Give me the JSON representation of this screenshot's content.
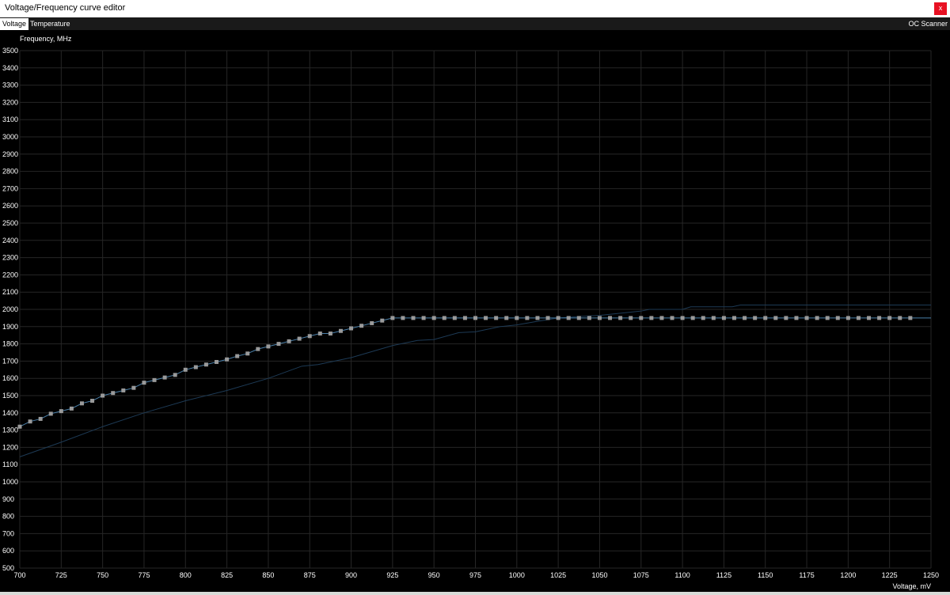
{
  "window": {
    "title": "Voltage/Frequency curve editor",
    "close_label": "x"
  },
  "tabs": [
    {
      "label": "Voltage",
      "active": true
    },
    {
      "label": "Temperature",
      "active": false
    }
  ],
  "oc_scanner_label": "OC Scanner",
  "colors": {
    "background": "#000000",
    "grid": "#262626",
    "curve": "#4a7fa8",
    "reference_curve": "#1d3a55",
    "marker": "#9a9a9a"
  },
  "chart_data": {
    "type": "line",
    "ylabel": "Frequency, MHz",
    "xlabel": "Voltage, mV",
    "xlim": [
      700,
      1250
    ],
    "ylim": [
      500,
      3500
    ],
    "grid": true,
    "x_ticks": [
      700,
      725,
      750,
      775,
      800,
      825,
      850,
      875,
      900,
      925,
      950,
      975,
      1000,
      1025,
      1050,
      1075,
      1100,
      1125,
      1150,
      1175,
      1200,
      1225,
      1250
    ],
    "y_ticks": [
      500,
      600,
      700,
      800,
      900,
      1000,
      1100,
      1200,
      1300,
      1400,
      1500,
      1600,
      1700,
      1800,
      1900,
      2000,
      2100,
      2200,
      2300,
      2400,
      2500,
      2600,
      2700,
      2800,
      2900,
      3000,
      3100,
      3200,
      3300,
      3400,
      3500
    ],
    "series": [
      {
        "role": "editable curve points",
        "x_start": 700,
        "x_step": 6.25,
        "values": [
          1320,
          1350,
          1365,
          1395,
          1410,
          1425,
          1455,
          1470,
          1500,
          1515,
          1530,
          1545,
          1575,
          1590,
          1605,
          1620,
          1650,
          1665,
          1680,
          1695,
          1710,
          1729,
          1744,
          1770,
          1785,
          1800,
          1815,
          1830,
          1845,
          1860,
          1860,
          1875,
          1890,
          1905,
          1920,
          1935,
          1950,
          1950,
          1950,
          1950,
          1950,
          1950,
          1950,
          1950,
          1950,
          1950,
          1950,
          1950,
          1950,
          1950,
          1950,
          1950,
          1950,
          1950,
          1950,
          1950,
          1950,
          1950,
          1950,
          1950,
          1950,
          1950,
          1950,
          1950,
          1950,
          1950,
          1950,
          1950,
          1950,
          1950,
          1950,
          1950,
          1950,
          1950,
          1950,
          1950,
          1950,
          1950,
          1950,
          1950,
          1950,
          1950,
          1950,
          1950,
          1950,
          1950,
          1950
        ],
        "line_extends_to": 1250
      },
      {
        "role": "reference curve",
        "points": [
          [
            700,
            1145
          ],
          [
            725,
            1230
          ],
          [
            750,
            1320
          ],
          [
            775,
            1400
          ],
          [
            800,
            1470
          ],
          [
            825,
            1530
          ],
          [
            850,
            1600
          ],
          [
            870,
            1670
          ],
          [
            880,
            1680
          ],
          [
            900,
            1720
          ],
          [
            925,
            1790
          ],
          [
            940,
            1820
          ],
          [
            950,
            1825
          ],
          [
            965,
            1865
          ],
          [
            975,
            1870
          ],
          [
            990,
            1900
          ],
          [
            1000,
            1910
          ],
          [
            1012,
            1930
          ],
          [
            1025,
            1950
          ],
          [
            1040,
            1960
          ],
          [
            1050,
            1965
          ],
          [
            1075,
            1990
          ],
          [
            1080,
            2000
          ],
          [
            1100,
            2000
          ],
          [
            1105,
            2015
          ],
          [
            1130,
            2015
          ],
          [
            1135,
            2025
          ],
          [
            1250,
            2025
          ]
        ]
      }
    ]
  }
}
